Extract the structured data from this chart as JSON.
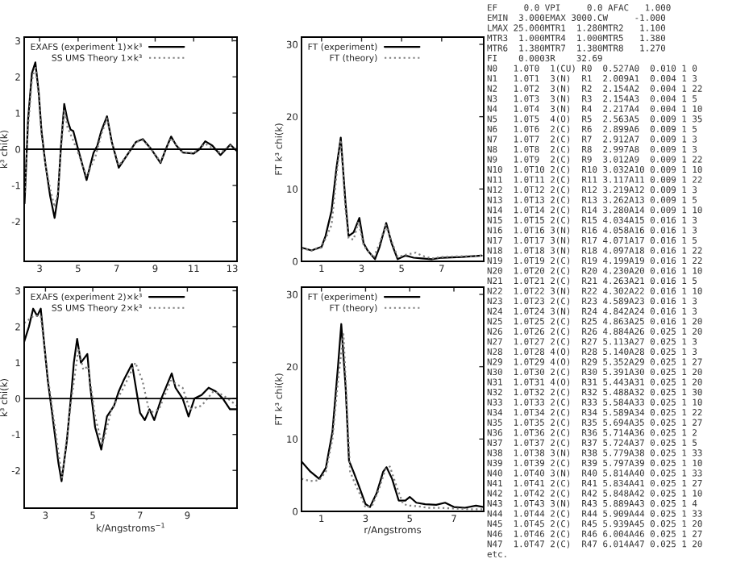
{
  "chart_data": [
    {
      "type": "line",
      "ylabel": "k³ chi(k)",
      "xlim": [
        2.2,
        13.25
      ],
      "ylim": [
        -3.1,
        3.1
      ],
      "xticks": [
        3,
        5,
        7,
        9,
        11,
        13
      ],
      "yticks": [
        -2,
        -1,
        0,
        1,
        2,
        3
      ],
      "legend": "top left",
      "grid": false,
      "ref_lines": [
        {
          "axis": "y",
          "value": 0,
          "color": "#000000"
        }
      ],
      "series": [
        {
          "name": "EXAFS (experiment 1)×k³",
          "color": "#000000",
          "line_style": "solid",
          "x": [
            2.22,
            2.4,
            2.6,
            2.78,
            2.95,
            3.1,
            3.3,
            3.55,
            3.78,
            3.95,
            4.1,
            4.28,
            4.45,
            4.61,
            4.75,
            5.0,
            5.44,
            5.8,
            6.0,
            6.2,
            6.5,
            6.75,
            7.11,
            7.5,
            8.0,
            8.36,
            8.8,
            9.28,
            9.55,
            9.83,
            10.1,
            10.44,
            11.0,
            11.3,
            11.6,
            11.97,
            12.39,
            12.9,
            13.22
          ],
          "values": [
            -1.5,
            0.8,
            2.1,
            2.4,
            1.6,
            0.5,
            -0.4,
            -1.3,
            -1.9,
            -1.3,
            0.0,
            1.25,
            0.8,
            0.54,
            0.5,
            0.0,
            -0.85,
            -0.1,
            0.1,
            0.5,
            0.91,
            0.2,
            -0.51,
            -0.2,
            0.2,
            0.28,
            0.0,
            -0.38,
            0.0,
            0.35,
            0.1,
            -0.09,
            -0.12,
            0.0,
            0.22,
            0.1,
            -0.16,
            0.13,
            -0.04
          ]
        },
        {
          "name": "SS UMS Theory 1×k³",
          "color": "#808080",
          "line_style": "dotted",
          "x": [
            2.22,
            2.4,
            2.6,
            2.78,
            2.95,
            3.1,
            3.3,
            3.55,
            3.78,
            3.95,
            4.1,
            4.28,
            4.45,
            4.7,
            5.0,
            5.44,
            5.9,
            6.2,
            6.5,
            6.75,
            7.11,
            7.5,
            8.0,
            8.36,
            8.8,
            9.28,
            9.55,
            9.83,
            10.44,
            11.0,
            11.6,
            12.39,
            12.9,
            13.22
          ],
          "values": [
            -1.2,
            0.6,
            1.9,
            2.3,
            1.5,
            0.4,
            -0.4,
            -1.1,
            -1.6,
            -1.2,
            -0.1,
            1.1,
            0.6,
            0.3,
            -0.1,
            -0.75,
            -0.2,
            0.4,
            0.85,
            0.2,
            -0.45,
            -0.2,
            0.2,
            0.25,
            0.0,
            -0.35,
            0.0,
            0.3,
            -0.1,
            -0.1,
            0.15,
            -0.1,
            0.1,
            0.0
          ]
        }
      ]
    },
    {
      "type": "line",
      "ylabel": "FT k³ chi(k)",
      "xlim": [
        0,
        9.1
      ],
      "ylim": [
        0,
        31
      ],
      "xticks": [
        1,
        3,
        5,
        7
      ],
      "yticks": [
        0,
        10,
        20,
        30
      ],
      "legend": "top left",
      "grid": false,
      "series": [
        {
          "name": "FT (experiment)",
          "color": "#000000",
          "line_style": "solid",
          "x": [
            0,
            0.5,
            1.0,
            1.2,
            1.5,
            1.75,
            1.96,
            2.2,
            2.35,
            2.6,
            2.89,
            3.1,
            3.3,
            3.67,
            3.9,
            4.23,
            4.5,
            4.8,
            5.2,
            5.6,
            6.0,
            6.5,
            7.0,
            8.0,
            9.0
          ],
          "values": [
            1.9,
            1.5,
            2.0,
            3.5,
            7,
            13,
            17.1,
            8,
            3.5,
            4.0,
            6.0,
            2.5,
            1.5,
            0.3,
            2,
            5.3,
            2.5,
            0.3,
            0.8,
            0.5,
            0.4,
            0.3,
            0.5,
            0.6,
            0.8
          ]
        },
        {
          "name": "FT (theory)",
          "color": "#808080",
          "line_style": "dotted",
          "x": [
            0,
            0.5,
            1.0,
            1.5,
            1.75,
            1.96,
            2.2,
            2.35,
            2.6,
            2.85,
            3.1,
            3.3,
            3.6,
            3.9,
            4.2,
            4.5,
            4.8,
            5.2,
            5.7,
            6.0,
            6.5,
            7.0,
            8.0,
            9.0
          ],
          "values": [
            1.8,
            1.5,
            1.9,
            5,
            12,
            16.8,
            7,
            3.2,
            3.0,
            5.5,
            2.2,
            1.5,
            0.5,
            2.5,
            5.0,
            2.8,
            0.6,
            0.9,
            1.2,
            0.8,
            0.4,
            0.6,
            0.7,
            0.8
          ]
        }
      ]
    },
    {
      "type": "line",
      "xlabel": "k/Angstroms$^{−1}$",
      "ylabel": "k³ chi(k)",
      "xlim": [
        2.1,
        11.1
      ],
      "ylim": [
        -3.05,
        3.1
      ],
      "xticks": [
        3,
        5,
        7,
        9
      ],
      "yticks": [
        -2,
        -1,
        0,
        1,
        2,
        3
      ],
      "legend": "top left",
      "grid": false,
      "ref_lines": [
        {
          "axis": "y",
          "value": 0,
          "color": "#000000"
        }
      ],
      "series": [
        {
          "name": "EXAFS (experiment 2)×k³",
          "color": "#000000",
          "line_style": "solid",
          "x": [
            2.1,
            2.3,
            2.48,
            2.65,
            2.8,
            2.95,
            3.1,
            3.3,
            3.55,
            3.68,
            3.9,
            4.1,
            4.2,
            4.34,
            4.5,
            4.77,
            4.9,
            5.1,
            5.36,
            5.6,
            5.9,
            6.1,
            6.3,
            6.66,
            7.0,
            7.2,
            7.4,
            7.6,
            7.9,
            8.34,
            8.5,
            8.8,
            9.05,
            9.3,
            9.6,
            9.9,
            10.2,
            10.5,
            10.8,
            11.1
          ],
          "values": [
            1.58,
            2.0,
            2.5,
            2.3,
            2.5,
            1.5,
            0.5,
            -0.5,
            -1.8,
            -2.3,
            -1.2,
            0.2,
            1.0,
            1.66,
            1.0,
            1.24,
            0.3,
            -0.8,
            -1.42,
            -0.5,
            -0.2,
            0.2,
            0.5,
            0.96,
            -0.4,
            -0.6,
            -0.3,
            -0.6,
            0.0,
            0.7,
            0.3,
            0.0,
            -0.5,
            0.0,
            0.1,
            0.3,
            0.2,
            0.0,
            -0.3,
            -0.3
          ]
        },
        {
          "name": "SS UMS Theory 2×k³",
          "color": "#808080",
          "line_style": "dotted",
          "x": [
            2.1,
            2.5,
            2.8,
            3.1,
            3.7,
            4.1,
            4.4,
            4.6,
            4.8,
            5.1,
            5.4,
            5.8,
            6.3,
            6.8,
            7.1,
            7.4,
            7.8,
            8.3,
            8.8,
            9.1,
            9.6,
            10.1,
            10.5,
            11.1
          ],
          "values": [
            2.1,
            2.3,
            2.3,
            0.6,
            -2.2,
            0.0,
            1.4,
            0.8,
            0.9,
            -0.5,
            -1.3,
            -0.3,
            0.3,
            1.0,
            0.5,
            -0.4,
            -0.3,
            0.5,
            0.3,
            -0.3,
            -0.2,
            0.2,
            0.1,
            -0.2
          ]
        }
      ]
    },
    {
      "type": "line",
      "xlabel": "r/Angstroms",
      "ylabel": "FT k³ chi(k)",
      "xlim": [
        0.1,
        8.35
      ],
      "ylim": [
        0,
        31
      ],
      "xticks": [
        1,
        3,
        5,
        7
      ],
      "yticks": [
        0,
        10,
        20,
        30
      ],
      "legend": "top left",
      "grid": false,
      "series": [
        {
          "name": "FT (experiment)",
          "color": "#000000",
          "line_style": "solid",
          "x": [
            0.1,
            0.5,
            0.9,
            1.2,
            1.5,
            1.75,
            1.9,
            2.1,
            2.25,
            2.45,
            2.7,
            3.0,
            3.2,
            3.5,
            3.8,
            3.95,
            4.2,
            4.5,
            4.8,
            5.0,
            5.3,
            5.7,
            6.2,
            6.6,
            7.0,
            7.5,
            8.0,
            8.35
          ],
          "values": [
            6.9,
            5.5,
            4.5,
            6,
            11,
            20,
            25.9,
            17,
            7,
            5.5,
            3.5,
            1.0,
            0.6,
            2.5,
            5.5,
            6.1,
            4.5,
            1.5,
            1.5,
            2.0,
            1.2,
            1.0,
            0.9,
            1.2,
            0.6,
            0.5,
            0.8,
            0.6
          ]
        },
        {
          "name": "FT (theory)",
          "color": "#808080",
          "line_style": "dotted",
          "x": [
            0.1,
            0.5,
            0.9,
            1.2,
            1.5,
            1.75,
            2.0,
            2.15,
            2.3,
            2.5,
            2.8,
            3.0,
            3.3,
            3.6,
            3.9,
            4.1,
            4.4,
            4.7,
            5.0,
            5.4,
            5.8,
            6.3,
            7.0,
            7.7,
            8.35
          ],
          "values": [
            4.5,
            4.2,
            4.3,
            5.5,
            10,
            18,
            24.5,
            15,
            5.5,
            4.0,
            2.0,
            0.5,
            0.8,
            3.0,
            5.8,
            6.2,
            3.5,
            1.0,
            0.8,
            0.7,
            0.5,
            0.5,
            0.4,
            0.3,
            0.3
          ]
        }
      ]
    },
    {
      "type": "other",
      "annotations": [
        "EF     0.0 VPI     0.0 AFAC   1.000",
        "EMIN  3.000EMAX 3000.CW     -1.000",
        "LMAX 25.000MTR1  1.280MTR2   1.100",
        "MTR3  1.000MTR4  1.000MTR5   1.380",
        "MTR6  1.380MTR7  1.380MTR8   1.270",
        "FI    0.0003R    32.69",
        "N0   1.0T0  1(CU) R0  0.527A0  0.010 1 0",
        "N1   1.0T1  3(N)  R1  2.009A1  0.004 1 3",
        "N2   1.0T2  3(N)  R2  2.154A2  0.004 1 22",
        "N3   1.0T3  3(N)  R3  2.154A3  0.004 1 5",
        "N4   1.0T4  3(N)  R4  2.217A4  0.004 1 10",
        "N5   1.0T5  4(O)  R5  2.563A5  0.009 1 35",
        "N6   1.0T6  2(C)  R6  2.899A6  0.009 1 5",
        "N7   1.0T7  2(C)  R7  2.912A7  0.009 1 3",
        "N8   1.0T8  2(C)  R8  2.997A8  0.009 1 3",
        "N9   1.0T9  2(C)  R9  3.012A9  0.009 1 22",
        "N10  1.0T10 2(C)  R10 3.032A10 0.009 1 10",
        "N11  1.0T11 2(C)  R11 3.117A11 0.009 1 22",
        "N12  1.0T12 2(C)  R12 3.219A12 0.009 1 3",
        "N13  1.0T13 2(C)  R13 3.262A13 0.009 1 5",
        "N14  1.0T14 2(C)  R14 3.280A14 0.009 1 10",
        "N15  1.0T15 2(C)  R15 4.034A15 0.016 1 3",
        "N16  1.0T16 3(N)  R16 4.058A16 0.016 1 3",
        "N17  1.0T17 3(N)  R17 4.071A17 0.016 1 5",
        "N18  1.0T18 3(N)  R18 4.097A18 0.016 1 22",
        "N19  1.0T19 2(C)  R19 4.199A19 0.016 1 22",
        "N20  1.0T20 2(C)  R20 4.230A20 0.016 1 10",
        "N21  1.0T21 2(C)  R21 4.263A21 0.016 1 5",
        "N22  1.0T22 3(N)  R22 4.302A22 0.016 1 10",
        "N23  1.0T23 2(C)  R23 4.589A23 0.016 1 3",
        "N24  1.0T24 3(N)  R24 4.842A24 0.016 1 3",
        "N25  1.0T25 2(C)  R25 4.863A25 0.016 1 20",
        "N26  1.0T26 2(C)  R26 4.884A26 0.025 1 20",
        "N27  1.0T27 2(C)  R27 5.113A27 0.025 1 3",
        "N28  1.0T28 4(O)  R28 5.140A28 0.025 1 3",
        "N29  1.0T29 4(O)  R29 5.352A29 0.025 1 27",
        "N30  1.0T30 2(C)  R30 5.391A30 0.025 1 20",
        "N31  1.0T31 4(O)  R31 5.443A31 0.025 1 20",
        "N32  1.0T32 2(C)  R32 5.488A32 0.025 1 30",
        "N33  1.0T33 2(C)  R33 5.584A33 0.025 1 10",
        "N34  1.0T34 2(C)  R34 5.589A34 0.025 1 22",
        "N35  1.0T35 2(C)  R35 5.694A35 0.025 1 27",
        "N36  1.0T36 2(C)  R36 5.714A36 0.025 1 2",
        "N37  1.0T37 2(C)  R37 5.724A37 0.025 1 5",
        "N38  1.0T38 3(N)  R38 5.779A38 0.025 1 33",
        "N39  1.0T39 2(C)  R39 5.797A39 0.025 1 10",
        "N40  1.0T40 3(N)  R40 5.814A40 0.025 1 33",
        "N41  1.0T41 2(C)  R41 5.834A41 0.025 1 27",
        "N42  1.0T42 2(C)  R42 5.848A42 0.025 1 10",
        "N43  1.0T43 3(N)  R43 5.889A43 0.025 1 4",
        "N44  1.0T44 2(C)  R44 5.909A44 0.025 1 33",
        "N45  1.0T45 2(C)  R45 5.939A45 0.025 1 20",
        "N46  1.0T46 2(C)  R46 6.004A46 0.025 1 27",
        "N47  1.0T47 2(C)  R47 6.014A47 0.025 1 20",
        "etc."
      ]
    }
  ]
}
